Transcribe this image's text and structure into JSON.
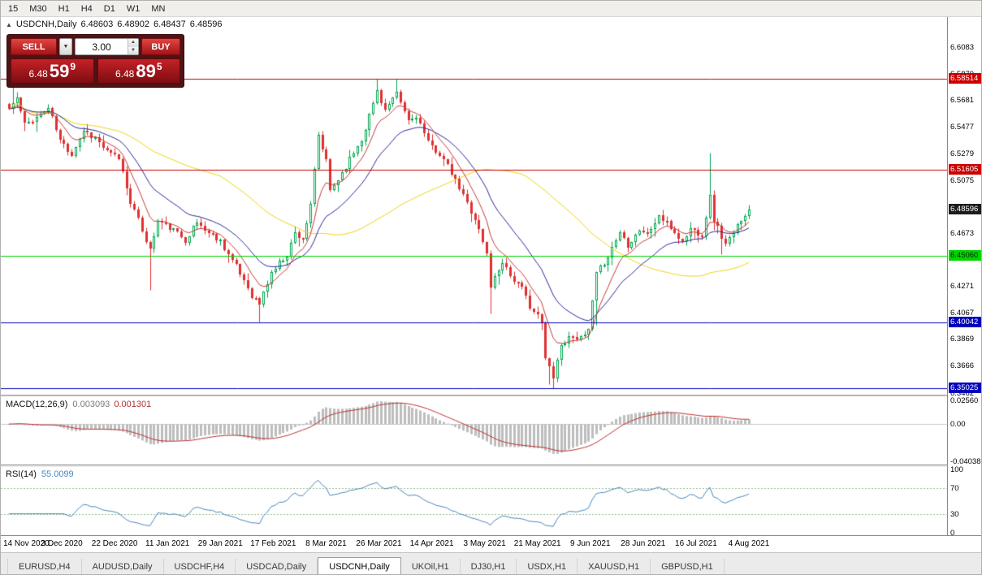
{
  "toolbar": {
    "timeframes": [
      "15",
      "M30",
      "H1",
      "H4",
      "D1",
      "W1",
      "MN"
    ]
  },
  "chart": {
    "symbol": "USDCNH,Daily",
    "open": "6.48603",
    "high": "6.48902",
    "low": "6.48437",
    "close": "6.48596"
  },
  "one_click": {
    "sell_label": "SELL",
    "buy_label": "BUY",
    "volume": "3.00",
    "sell_price": {
      "prefix": "6.48",
      "big": "59",
      "sup": "9"
    },
    "buy_price": {
      "prefix": "6.48",
      "big": "89",
      "sup": "5"
    }
  },
  "price_scale": {
    "labels": [
      {
        "text": "6.6083",
        "value": 6.6083
      },
      {
        "text": "6.5879",
        "value": 6.5879
      },
      {
        "text": "6.5681",
        "value": 6.5681
      },
      {
        "text": "6.5477",
        "value": 6.5477
      },
      {
        "text": "6.5279",
        "value": 6.5279
      },
      {
        "text": "6.5075",
        "value": 6.5075
      },
      {
        "text": "6.4673",
        "value": 6.4673
      },
      {
        "text": "6.4271",
        "value": 6.4271
      },
      {
        "text": "6.4067",
        "value": 6.4067
      },
      {
        "text": "6.3869",
        "value": 6.3869
      },
      {
        "text": "6.3666",
        "value": 6.3666
      },
      {
        "text": "6.3462",
        "value": 6.3462
      }
    ],
    "badges": [
      {
        "text": "6.58514",
        "value": 6.58514,
        "bg": "#cc0000",
        "fg": "#ffffff"
      },
      {
        "text": "6.51605",
        "value": 6.51605,
        "bg": "#cc0000",
        "fg": "#ffffff"
      },
      {
        "text": "6.48596",
        "value": 6.48596,
        "bg": "#1c1c1c",
        "fg": "#ffffff"
      },
      {
        "text": "6.45060",
        "value": 6.4506,
        "bg": "#00d400",
        "fg": "#002b00"
      },
      {
        "text": "6.40042",
        "value": 6.40042,
        "bg": "#0000bb",
        "fg": "#ffffff"
      },
      {
        "text": "6.35025",
        "value": 6.35025,
        "bg": "#0000bb",
        "fg": "#ffffff"
      }
    ]
  },
  "macd_panel": {
    "title": "MACD(12,26,9)",
    "value_main": "0.003093",
    "value_signal": "0.001301",
    "labels": [
      {
        "text": "0.02560",
        "value": 0.0256
      },
      {
        "text": "0.00",
        "value": 0
      },
      {
        "text": "-0.04038",
        "value": -0.0404
      }
    ]
  },
  "rsi_panel": {
    "title": "RSI(14)",
    "value": "55.0099",
    "labels": [
      {
        "text": "100",
        "value": 100
      },
      {
        "text": "70",
        "value": 70
      },
      {
        "text": "30",
        "value": 30
      },
      {
        "text": "0",
        "value": 0
      }
    ]
  },
  "date_axis": [
    "14 Nov 2020",
    "3 Dec 2020",
    "22 Dec 2020",
    "11 Jan 2021",
    "29 Jan 2021",
    "17 Feb 2021",
    "8 Mar 2021",
    "26 Mar 2021",
    "14 Apr 2021",
    "3 May 2021",
    "21 May 2021",
    "9 Jun 2021",
    "28 Jun 2021",
    "16 Jul 2021",
    "4 Aug 2021"
  ],
  "tabs": [
    {
      "label": "EURUSD,H4",
      "active": false
    },
    {
      "label": "AUDUSD,Daily",
      "active": false
    },
    {
      "label": "USDCHF,H4",
      "active": false
    },
    {
      "label": "USDCAD,Daily",
      "active": false
    },
    {
      "label": "USDCNH,Daily",
      "active": true
    },
    {
      "label": "UKOil,H1",
      "active": false
    },
    {
      "label": "DJ30,H1",
      "active": false
    },
    {
      "label": "USDX,H1",
      "active": false
    },
    {
      "label": "XAUUSD,H1",
      "active": false
    },
    {
      "label": "GBPUSD,H1",
      "active": false
    }
  ],
  "chart_data": {
    "type": "candlestick",
    "symbol": "USDCNH",
    "timeframe": "Daily",
    "count": 190,
    "seed": 11,
    "last_close": 6.48596,
    "price_top": 6.6317,
    "price_bottom": 6.3453,
    "up_color": "#00A650",
    "down_color": "#E03030",
    "anchors": [
      [
        0,
        6.562
      ],
      [
        2,
        6.57
      ],
      [
        4,
        6.55
      ],
      [
        7,
        6.556
      ],
      [
        10,
        6.563
      ],
      [
        13,
        6.538
      ],
      [
        16,
        6.528
      ],
      [
        19,
        6.546
      ],
      [
        22,
        6.54
      ],
      [
        25,
        6.529
      ],
      [
        28,
        6.525
      ],
      [
        31,
        6.492
      ],
      [
        34,
        6.47
      ],
      [
        36,
        6.455
      ],
      [
        38,
        6.477
      ],
      [
        41,
        6.472
      ],
      [
        45,
        6.463
      ],
      [
        48,
        6.476
      ],
      [
        51,
        6.468
      ],
      [
        54,
        6.462
      ],
      [
        57,
        6.447
      ],
      [
        60,
        6.432
      ],
      [
        62,
        6.421
      ],
      [
        64,
        6.414
      ],
      [
        67,
        6.438
      ],
      [
        71,
        6.452
      ],
      [
        73,
        6.468
      ],
      [
        75,
        6.464
      ],
      [
        77,
        6.488
      ],
      [
        79,
        6.542
      ],
      [
        81,
        6.522
      ],
      [
        82,
        6.5
      ],
      [
        84,
        6.509
      ],
      [
        87,
        6.524
      ],
      [
        90,
        6.539
      ],
      [
        93,
        6.566
      ],
      [
        94,
        6.576
      ],
      [
        96,
        6.561
      ],
      [
        99,
        6.573
      ],
      [
        102,
        6.553
      ],
      [
        104,
        6.557
      ],
      [
        107,
        6.536
      ],
      [
        110,
        6.528
      ],
      [
        113,
        6.513
      ],
      [
        116,
        6.496
      ],
      [
        119,
        6.479
      ],
      [
        122,
        6.452
      ],
      [
        123,
        6.428
      ],
      [
        126,
        6.447
      ],
      [
        128,
        6.436
      ],
      [
        131,
        6.425
      ],
      [
        133,
        6.413
      ],
      [
        136,
        6.4
      ],
      [
        137,
        6.372
      ],
      [
        139,
        6.36
      ],
      [
        141,
        6.383
      ],
      [
        144,
        6.391
      ],
      [
        146,
        6.387
      ],
      [
        148,
        6.394
      ],
      [
        150,
        6.436
      ],
      [
        153,
        6.451
      ],
      [
        156,
        6.469
      ],
      [
        158,
        6.459
      ],
      [
        161,
        6.471
      ],
      [
        163,
        6.467
      ],
      [
        166,
        6.481
      ],
      [
        169,
        6.472
      ],
      [
        172,
        6.461
      ],
      [
        174,
        6.471
      ],
      [
        177,
        6.467
      ],
      [
        179,
        6.495
      ],
      [
        180,
        6.478
      ],
      [
        183,
        6.459
      ],
      [
        185,
        6.467
      ],
      [
        187,
        6.479
      ],
      [
        189,
        6.486
      ]
    ],
    "spikes": [
      {
        "i": 1,
        "high": 6.58
      },
      {
        "i": 36,
        "low": 6.425
      },
      {
        "i": 64,
        "low": 6.401
      },
      {
        "i": 94,
        "high": 6.5851
      },
      {
        "i": 99,
        "high": 6.5848
      },
      {
        "i": 123,
        "low": 6.407
      },
      {
        "i": 138,
        "low": 6.353
      },
      {
        "i": 150,
        "low": 6.398
      },
      {
        "i": 179,
        "high": 6.529
      },
      {
        "i": 182,
        "low": 6.452
      }
    ],
    "hlines": [
      {
        "price": 6.58514,
        "color": "#cc0000"
      },
      {
        "price": 6.51605,
        "color": "#cc0000"
      },
      {
        "price": 6.4506,
        "color": "#00d400"
      },
      {
        "price": 6.40042,
        "color": "#0000bb"
      },
      {
        "price": 6.35025,
        "color": "#0000bb"
      }
    ],
    "moving_averages": [
      {
        "type": "ema",
        "period": 8,
        "color": "#C93A3A"
      },
      {
        "type": "ema",
        "period": 20,
        "color": "#2A2A9C"
      },
      {
        "type": "sma",
        "period": 55,
        "color": "#EFD612"
      }
    ],
    "macd": {
      "fast": 12,
      "slow": 26,
      "signal": 9,
      "histogram_color": "#BDBDBD",
      "signal_color": "#C03030",
      "scale_max": 0.0256,
      "scale_min": -0.0404
    },
    "rsi": {
      "period": 14,
      "color": "#4C86BE",
      "levels": [
        70,
        30
      ],
      "level_color": "#8FBC8F"
    }
  }
}
